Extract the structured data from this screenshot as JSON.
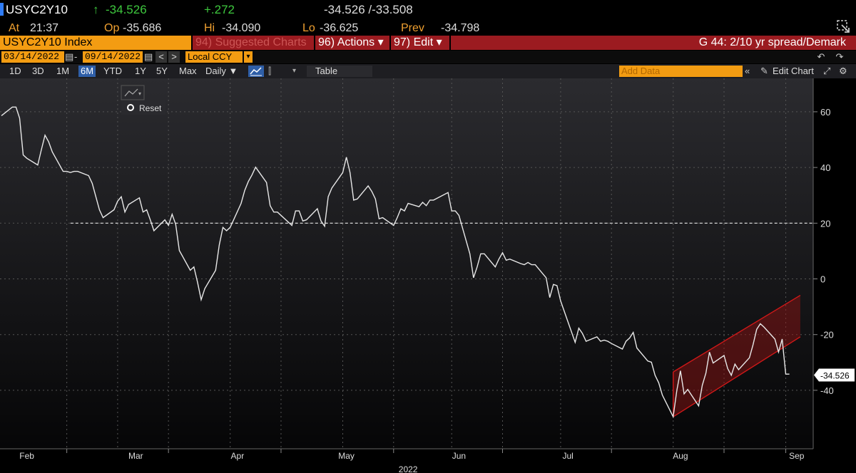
{
  "header": {
    "ticker": "USYC2Y10",
    "last_arrow": "↑",
    "last": "-34.526",
    "net_change": "+.272",
    "bid_ask": "-34.526 /-33.508",
    "at_label": "At",
    "at_time": "21:37",
    "open_label": "Op",
    "open": "-35.686",
    "high_label": "Hi",
    "high": "-34.090",
    "low_label": "Lo",
    "low": "-36.625",
    "prev_label": "Prev",
    "prev": "-34.798"
  },
  "toolbar": {
    "security": "USYC2Y10 Index",
    "suggested": "94) Suggested Charts",
    "actions": "96) Actions ▾",
    "edit": "97) Edit ▾",
    "chart_title": "G 44: 2/10 yr spread/Demark"
  },
  "date_bar": {
    "start_date": "03/14/2022",
    "end_date": "09/14/2022",
    "prev": "<",
    "next": ">",
    "currency": "Local CCY"
  },
  "period_bar": {
    "periods": [
      "1D",
      "3D",
      "1M",
      "6M",
      "YTD",
      "1Y",
      "5Y",
      "Max"
    ],
    "active_period": "6M",
    "frequency": "Daily ▼",
    "table": "Table",
    "add_data_placeholder": "Add Data",
    "edit_chart": "Edit Chart"
  },
  "overlay": {
    "reset": "Reset"
  },
  "colors": {
    "orange": "#f39c12",
    "dark_red": "#9b1b20",
    "line": "#e8e8e8",
    "channel": "#d01818",
    "active_period_bg": "#2f5fa8"
  },
  "chart_data": {
    "type": "line",
    "series": [
      {
        "values_x": [
          0,
          0.5,
          1,
          1.5,
          2,
          2.5,
          3,
          3.5,
          4,
          4.5,
          5,
          5.5,
          6,
          6.5,
          7,
          7.5,
          8,
          8.5,
          9,
          9.5,
          10,
          10.5,
          11,
          11.5,
          12,
          12.5,
          13,
          13.5,
          14,
          14.5,
          15,
          15.5,
          16,
          16.5,
          17,
          17.5,
          18,
          18.5,
          19,
          19.5,
          20,
          20.5,
          21,
          21.5,
          22,
          22.5,
          23,
          23.5,
          24,
          24.5,
          25,
          25.5,
          26,
          26.5,
          27,
          27.5,
          28,
          28.5,
          29,
          29.5,
          30,
          30.5,
          31,
          31.5,
          32,
          32.5,
          33,
          33.5,
          34,
          34.5,
          35,
          35.5,
          36,
          36.5,
          37,
          37.5,
          38,
          38.5,
          39,
          39.5,
          40,
          40.5,
          41,
          41.5,
          42,
          42.5,
          43,
          43.5,
          44,
          44.5,
          45,
          45.5,
          46,
          46.5,
          47,
          47.5,
          48,
          48.5,
          49,
          49.5,
          50,
          50.5,
          51,
          51.5,
          52,
          52.5,
          53,
          53.5,
          54,
          54.5,
          55,
          55.5,
          56,
          56.5,
          57,
          57.5,
          58,
          58.5,
          59,
          59.5,
          60,
          60.5,
          61,
          61.5,
          62,
          62.5,
          63,
          63.5,
          64,
          64.5,
          65,
          65.5,
          66,
          66.5,
          67,
          67.5,
          68,
          68.5,
          69,
          69.5,
          70,
          70.5,
          71,
          71.5,
          72,
          72.5,
          73,
          73.5,
          74,
          74.5,
          75,
          75.5,
          76,
          76.5,
          77,
          77.5,
          78,
          78.5,
          79,
          79.5,
          80,
          80.5,
          81,
          81.5,
          82,
          82.5,
          83,
          83.5,
          84,
          84.5,
          85,
          85.5,
          86,
          86.5,
          87,
          87.5,
          88,
          88.5,
          89,
          89.5,
          90,
          90.5,
          91,
          91.5,
          92,
          92.5,
          93,
          93.5,
          94,
          94.5,
          95,
          95.5,
          96,
          96.5,
          97,
          97.5,
          98,
          98.5,
          99,
          99.5,
          100,
          100.5,
          101,
          101.5,
          102,
          102.5,
          103,
          103.5,
          104,
          104.5,
          105,
          105.5,
          106,
          106.5,
          107,
          107.5,
          108,
          108.5,
          109,
          109.5,
          110,
          110.5,
          111,
          111.5,
          112,
          112.5,
          113,
          113.5,
          114,
          114.5,
          115,
          115.5,
          116,
          116.5,
          117,
          117.5,
          118,
          118.5,
          119,
          119.5,
          120,
          120.5,
          121,
          121.5,
          122,
          122.5,
          123,
          123.5,
          124,
          124.5,
          125,
          125.5,
          126,
          126.5,
          127,
          127.5,
          128,
          128.5,
          129,
          129.5,
          130,
          130.5,
          131,
          131.5,
          132,
          132.5,
          133,
          133.5,
          134,
          134.5,
          135,
          135.5,
          136,
          136.5,
          137,
          137.5,
          138,
          138.5,
          139,
          139.5,
          140,
          140.5,
          141
        ],
        "name": ""
      }
    ],
    "months": [
      "Feb",
      "Mar",
      "Apr",
      "May",
      "Jun",
      "Jul",
      "Aug",
      "Sep"
    ],
    "year_label": "2022",
    "y_ticks": [
      60,
      40,
      20,
      0,
      -20,
      -40
    ],
    "ylim": [
      -61,
      72
    ],
    "reference_level": 20,
    "last_value_label": "-34.526",
    "points": [
      [
        "2022-01-28",
        58.6
      ],
      [
        "2022-01-31",
        61.7
      ],
      [
        "2022-02-01",
        61.7
      ],
      [
        "2022-02-02",
        57.7
      ],
      [
        "2022-02-03",
        44.5
      ],
      [
        "2022-02-04",
        43.3
      ],
      [
        "2022-02-07",
        40.9
      ],
      [
        "2022-02-08",
        46.4
      ],
      [
        "2022-02-09",
        51.6
      ],
      [
        "2022-02-10",
        49.2
      ],
      [
        "2022-02-11",
        45.6
      ],
      [
        "2022-02-14",
        38.6
      ],
      [
        "2022-02-15",
        38.6
      ],
      [
        "2022-02-16",
        38.2
      ],
      [
        "2022-02-17",
        38.6
      ],
      [
        "2022-02-18",
        38.6
      ],
      [
        "2022-02-21",
        37.1
      ],
      [
        "2022-02-22",
        34.3
      ],
      [
        "2022-02-23",
        29.5
      ],
      [
        "2022-02-24",
        24.8
      ],
      [
        "2022-02-25",
        22.0
      ],
      [
        "2022-02-28",
        24.8
      ],
      [
        "2022-03-01",
        27.9
      ],
      [
        "2022-03-02",
        29.5
      ],
      [
        "2022-03-03",
        24.0
      ],
      [
        "2022-03-04",
        26.7
      ],
      [
        "2022-03-07",
        29.1
      ],
      [
        "2022-03-08",
        24.0
      ],
      [
        "2022-03-09",
        24.8
      ],
      [
        "2022-03-10",
        21.2
      ],
      [
        "2022-03-11",
        17.3
      ],
      [
        "2022-03-14",
        21.2
      ],
      [
        "2022-03-15",
        19.2
      ],
      [
        "2022-03-16",
        23.2
      ],
      [
        "2022-03-17",
        19.6
      ],
      [
        "2022-03-18",
        10.2
      ],
      [
        "2022-03-21",
        3.1
      ],
      [
        "2022-03-22",
        4.3
      ],
      [
        "2022-03-23",
        -1.2
      ],
      [
        "2022-03-24",
        -7.5
      ],
      [
        "2022-03-25",
        -3.5
      ],
      [
        "2022-03-28",
        3.1
      ],
      [
        "2022-03-29",
        12.2
      ],
      [
        "2022-03-30",
        18.5
      ],
      [
        "2022-03-31",
        17.3
      ],
      [
        "2022-04-01",
        18.5
      ],
      [
        "2022-04-04",
        27.1
      ],
      [
        "2022-04-05",
        31.8
      ],
      [
        "2022-04-06",
        35.0
      ],
      [
        "2022-04-07",
        37.3
      ],
      [
        "2022-04-08",
        40.1
      ],
      [
        "2022-04-11",
        34.6
      ],
      [
        "2022-04-12",
        26.3
      ],
      [
        "2022-04-13",
        24.0
      ],
      [
        "2022-04-14",
        24.0
      ],
      [
        "2022-04-18",
        19.2
      ],
      [
        "2022-04-19",
        24.4
      ],
      [
        "2022-04-20",
        24.4
      ],
      [
        "2022-04-21",
        20.8
      ],
      [
        "2022-04-22",
        21.2
      ],
      [
        "2022-04-25",
        25.2
      ],
      [
        "2022-04-26",
        20.8
      ],
      [
        "2022-04-27",
        18.9
      ],
      [
        "2022-04-28",
        29.5
      ],
      [
        "2022-04-29",
        32.6
      ],
      [
        "2022-05-02",
        38.2
      ],
      [
        "2022-05-03",
        43.7
      ],
      [
        "2022-05-04",
        38.2
      ],
      [
        "2022-05-05",
        28.3
      ],
      [
        "2022-05-06",
        28.7
      ],
      [
        "2022-05-09",
        33.4
      ],
      [
        "2022-05-10",
        31.4
      ],
      [
        "2022-05-11",
        28.7
      ],
      [
        "2022-05-12",
        21.6
      ],
      [
        "2022-05-13",
        22.0
      ],
      [
        "2022-05-16",
        19.2
      ],
      [
        "2022-05-17",
        22.0
      ],
      [
        "2022-05-18",
        25.2
      ],
      [
        "2022-05-19",
        24.4
      ],
      [
        "2022-05-20",
        27.1
      ],
      [
        "2022-05-23",
        25.9
      ],
      [
        "2022-05-24",
        27.5
      ],
      [
        "2022-05-25",
        26.3
      ],
      [
        "2022-05-26",
        28.3
      ],
      [
        "2022-05-27",
        28.3
      ],
      [
        "2022-05-31",
        31.0
      ],
      [
        "2022-06-01",
        24.4
      ],
      [
        "2022-06-02",
        24.4
      ],
      [
        "2022-06-03",
        22.8
      ],
      [
        "2022-06-06",
        9.0
      ],
      [
        "2022-06-07",
        0.4
      ],
      [
        "2022-06-08",
        4.3
      ],
      [
        "2022-06-09",
        9.0
      ],
      [
        "2022-06-10",
        9.0
      ],
      [
        "2022-06-13",
        4.3
      ],
      [
        "2022-06-14",
        7.1
      ],
      [
        "2022-06-15",
        9.4
      ],
      [
        "2022-06-16",
        6.7
      ],
      [
        "2022-06-17",
        7.1
      ],
      [
        "2022-06-20",
        5.5
      ],
      [
        "2022-06-21",
        5.1
      ],
      [
        "2022-06-22",
        5.9
      ],
      [
        "2022-06-23",
        5.1
      ],
      [
        "2022-06-24",
        5.1
      ],
      [
        "2022-06-27",
        0.4
      ],
      [
        "2022-06-28",
        -6.7
      ],
      [
        "2022-06-29",
        -2.0
      ],
      [
        "2022-06-30",
        -2.4
      ],
      [
        "2022-07-01",
        -7.9
      ],
      [
        "2022-07-05",
        -22.8
      ],
      [
        "2022-07-06",
        -17.7
      ],
      [
        "2022-07-07",
        -19.6
      ],
      [
        "2022-07-08",
        -22.4
      ],
      [
        "2022-07-11",
        -20.8
      ],
      [
        "2022-07-12",
        -22.4
      ],
      [
        "2022-07-13",
        -22.0
      ],
      [
        "2022-07-14",
        -22.4
      ],
      [
        "2022-07-15",
        -23.2
      ],
      [
        "2022-07-18",
        -25.2
      ],
      [
        "2022-07-19",
        -22.4
      ],
      [
        "2022-07-20",
        -21.2
      ],
      [
        "2022-07-21",
        -19.2
      ],
      [
        "2022-07-22",
        -24.8
      ],
      [
        "2022-07-25",
        -29.5
      ],
      [
        "2022-07-26",
        -29.9
      ],
      [
        "2022-07-27",
        -34.6
      ],
      [
        "2022-07-28",
        -37.3
      ],
      [
        "2022-07-29",
        -41.7
      ],
      [
        "2022-08-01",
        -49.5
      ],
      [
        "2022-08-02",
        -40.1
      ],
      [
        "2022-08-03",
        -33.0
      ],
      [
        "2022-08-04",
        -41.3
      ],
      [
        "2022-08-05",
        -39.7
      ],
      [
        "2022-08-08",
        -45.6
      ],
      [
        "2022-08-09",
        -38.2
      ],
      [
        "2022-08-10",
        -33.8
      ],
      [
        "2022-08-11",
        -26.3
      ],
      [
        "2022-08-12",
        -30.2
      ],
      [
        "2022-08-15",
        -27.5
      ],
      [
        "2022-08-16",
        -32.2
      ],
      [
        "2022-08-17",
        -34.6
      ],
      [
        "2022-08-18",
        -30.6
      ],
      [
        "2022-08-19",
        -32.6
      ],
      [
        "2022-08-22",
        -28.3
      ],
      [
        "2022-08-23",
        -23.6
      ],
      [
        "2022-08-24",
        -18.1
      ],
      [
        "2022-08-25",
        -16.1
      ],
      [
        "2022-08-26",
        -17.3
      ],
      [
        "2022-08-29",
        -21.6
      ],
      [
        "2022-08-30",
        -26.3
      ],
      [
        "2022-08-31",
        -21.6
      ],
      [
        "2022-09-01",
        -34.2
      ],
      [
        "2022-09-02",
        -34.2
      ]
    ],
    "channel": {
      "upper": [
        [
          "2022-08-01",
          -33.4
        ],
        [
          "2022-09-05",
          -5.9
        ]
      ],
      "lower": [
        [
          "2022-08-01",
          -49.5
        ],
        [
          "2022-09-05",
          -20.8
        ]
      ]
    }
  }
}
